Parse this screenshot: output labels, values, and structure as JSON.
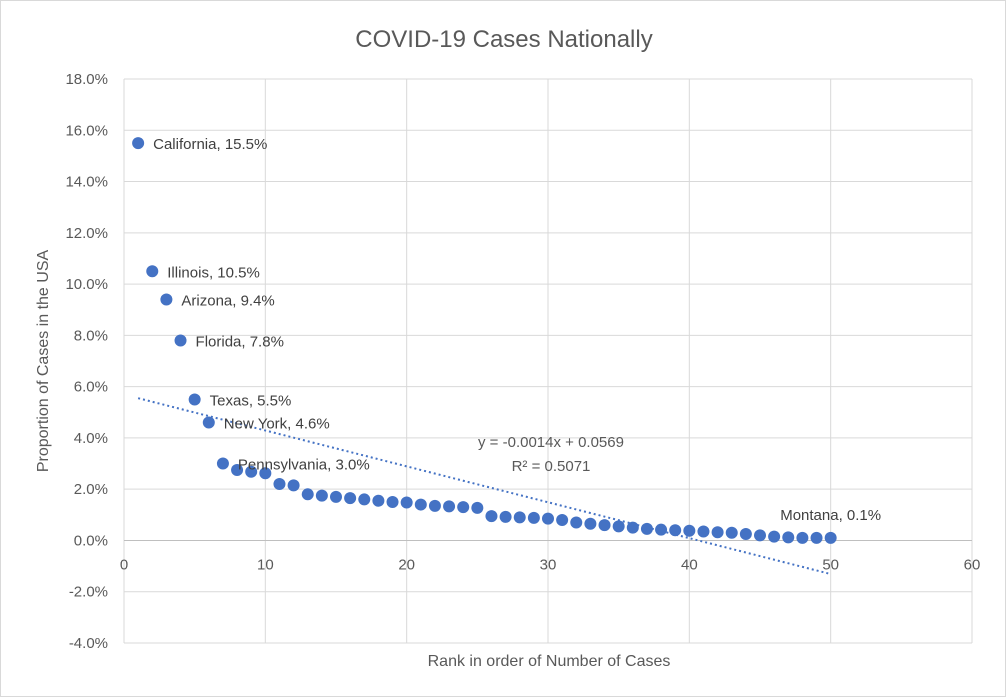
{
  "chart_data": {
    "type": "scatter",
    "title": "COVID-19 Cases Nationally",
    "xlabel": "Rank in order of Number of Cases",
    "ylabel": "Proportion of Cases in the USA",
    "xlim": [
      0,
      60
    ],
    "ylim": [
      -0.04,
      0.18
    ],
    "x_ticks": [
      0,
      10,
      20,
      30,
      40,
      50,
      60
    ],
    "x_tick_labels": [
      "0",
      "10",
      "20",
      "30",
      "40",
      "50",
      "60"
    ],
    "y_ticks": [
      -0.04,
      -0.02,
      0,
      0.02,
      0.04,
      0.06,
      0.08,
      0.1,
      0.12,
      0.14,
      0.16,
      0.18
    ],
    "y_tick_labels": [
      "-4.0%",
      "-2.0%",
      "0.0%",
      "2.0%",
      "4.0%",
      "6.0%",
      "8.0%",
      "10.0%",
      "12.0%",
      "14.0%",
      "16.0%",
      "18.0%"
    ],
    "grid": true,
    "marker_color": "#4472c4",
    "trendline_color": "#4472c4",
    "series": [
      {
        "x": [
          1,
          2,
          3,
          4,
          5,
          6,
          7,
          8,
          9,
          10,
          11,
          12,
          13,
          14,
          15,
          16,
          17,
          18,
          19,
          20,
          21,
          22,
          23,
          24,
          25,
          26,
          27,
          28,
          29,
          30,
          31,
          32,
          33,
          34,
          35,
          36,
          37,
          38,
          39,
          40,
          41,
          42,
          43,
          44,
          45,
          46,
          47,
          48,
          49,
          50
        ],
        "y": [
          0.155,
          0.105,
          0.094,
          0.078,
          0.055,
          0.046,
          0.03,
          0.0275,
          0.0268,
          0.0262,
          0.022,
          0.0215,
          0.018,
          0.0175,
          0.017,
          0.0165,
          0.016,
          0.0155,
          0.015,
          0.0148,
          0.014,
          0.0135,
          0.0133,
          0.013,
          0.0127,
          0.0095,
          0.0092,
          0.009,
          0.0088,
          0.0085,
          0.008,
          0.007,
          0.0065,
          0.006,
          0.0055,
          0.005,
          0.0045,
          0.0042,
          0.004,
          0.0038,
          0.0035,
          0.0032,
          0.003,
          0.0025,
          0.002,
          0.0015,
          0.0012,
          0.001,
          0.001,
          0.001
        ]
      }
    ],
    "annotations": [
      {
        "index": 0,
        "text": "California, 15.5%"
      },
      {
        "index": 1,
        "text": "Illinois, 10.5%"
      },
      {
        "index": 2,
        "text": "Arizona, 9.4%"
      },
      {
        "index": 3,
        "text": "Florida, 7.8%"
      },
      {
        "index": 4,
        "text": "Texas, 5.5%"
      },
      {
        "index": 5,
        "text": "New York, 4.6%"
      },
      {
        "index": 6,
        "text": "Pennsylvania, 3.0%"
      },
      {
        "index": 49,
        "text": "Montana, 0.1%"
      }
    ],
    "trendline": {
      "slope": -0.0014,
      "intercept": 0.0569,
      "x_range": [
        1,
        50
      ],
      "equation": "y = -0.0014x + 0.0569",
      "r_squared": "R² = 0.5071"
    }
  }
}
